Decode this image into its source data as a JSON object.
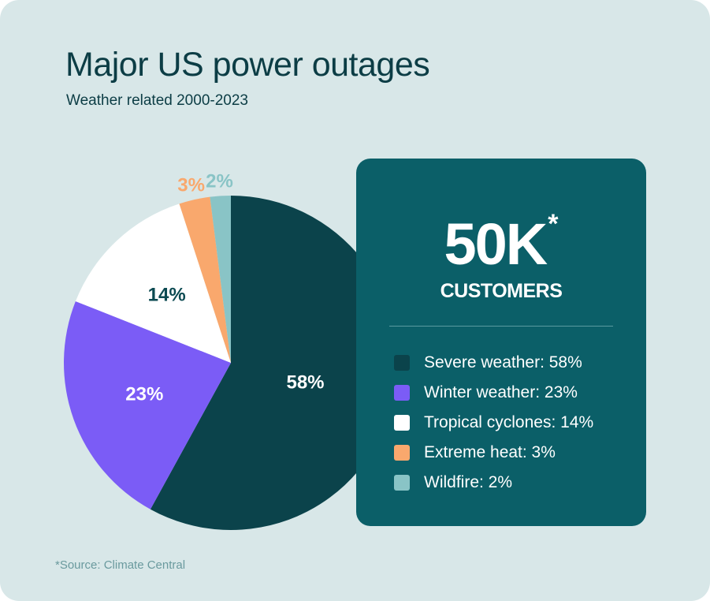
{
  "header": {
    "title": "Major US power outages",
    "subtitle": "Weather related 2000-2023"
  },
  "highlight": {
    "value": "50K",
    "marker": "*",
    "unit": "CUSTOMERS"
  },
  "footnote": "*Source: Climate Central",
  "colors": {
    "background": "#d8e7e8",
    "panel": "#0b5f68",
    "text_dark": "#0c3d45"
  },
  "chart_data": {
    "type": "pie",
    "slices": [
      {
        "name": "Severe weather",
        "value": 58,
        "label": "58%",
        "legend": "Severe weather: 58%",
        "color": "#0b434b",
        "label_color": "#ffffff"
      },
      {
        "name": "Winter weather",
        "value": 23,
        "label": "23%",
        "legend": "Winter weather: 23%",
        "color": "#7b5cf6",
        "label_color": "#ffffff"
      },
      {
        "name": "Tropical cyclones",
        "value": 14,
        "label": "14%",
        "legend": "Tropical cyclones: 14%",
        "color": "#ffffff",
        "label_color": "#0c4a52"
      },
      {
        "name": "Extreme heat",
        "value": 3,
        "label": "3%",
        "legend": "Extreme heat: 3%",
        "color": "#f9a86d",
        "label_color": "#f9a86d"
      },
      {
        "name": "Wildfire",
        "value": 2,
        "label": "2%",
        "legend": "Wildfire: 2%",
        "color": "#89c4c6",
        "label_color": "#89c4c6"
      }
    ],
    "start": "12 o'clock",
    "direction": "clockwise",
    "legend_position": "right"
  }
}
